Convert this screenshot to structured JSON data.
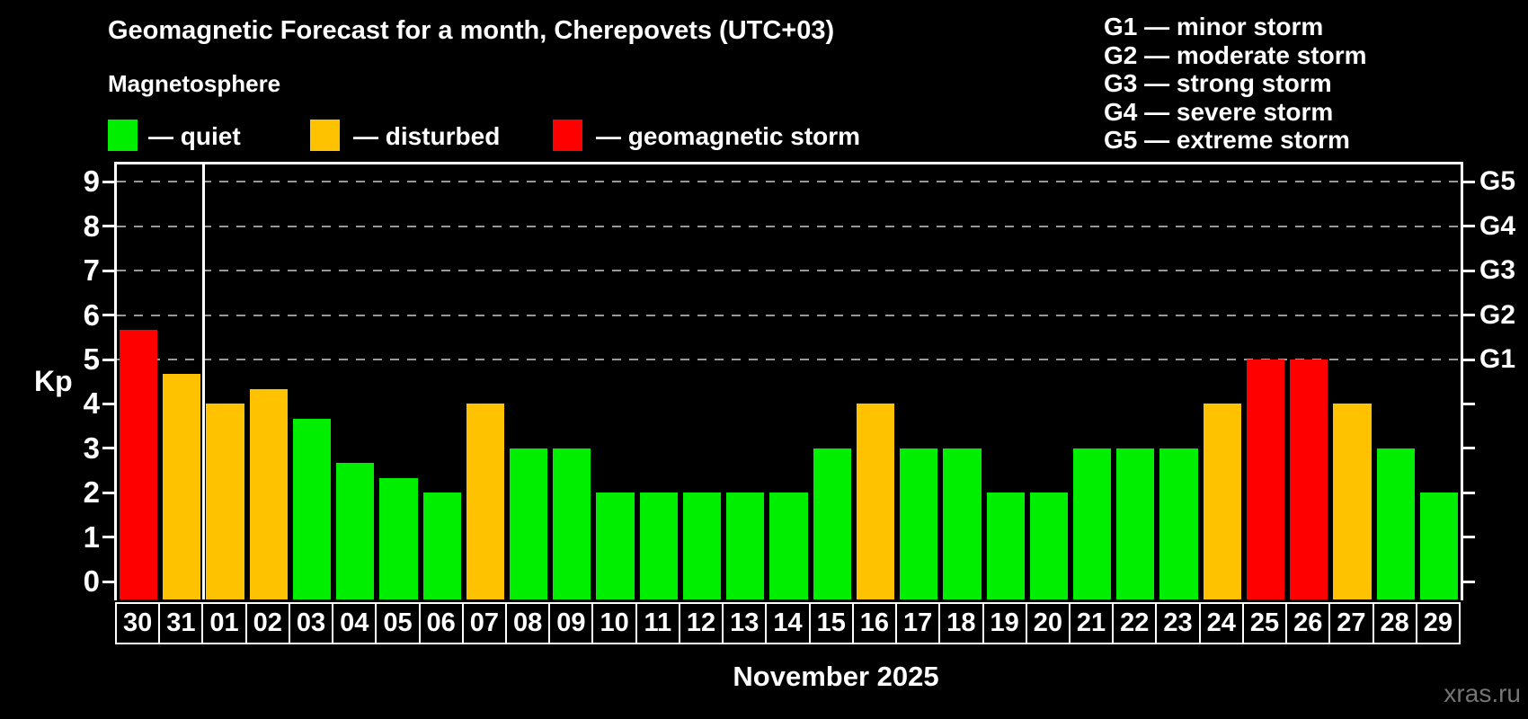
{
  "header": {
    "title": "Geomagnetic Forecast for a month, Cherepovets (UTC+03)",
    "subtitle": "Magnetosphere"
  },
  "legend": {
    "items": [
      {
        "label": "— quiet",
        "level": "quiet"
      },
      {
        "label": "— disturbed",
        "level": "disturbed"
      },
      {
        "label": "— geomagnetic storm",
        "level": "storm"
      }
    ]
  },
  "glegend": {
    "items": [
      "G1 — minor storm",
      "G2 — moderate storm",
      "G3 — strong storm",
      "G4 — severe storm",
      "G5 — extreme storm"
    ]
  },
  "colors": {
    "quiet": "#00ee00",
    "disturbed": "#ffc200",
    "storm": "#ff0000",
    "grid": "#999999",
    "axis": "#ffffff",
    "background": "#000000",
    "watermark": "#757575"
  },
  "chart_data": {
    "type": "bar",
    "title": "Geomagnetic Forecast for a month, Cherepovets (UTC+03)",
    "xlabel": "November 2025",
    "ylabel": "Kp",
    "ylim": [
      0,
      9
    ],
    "y_ticks": [
      0,
      1,
      2,
      3,
      4,
      5,
      6,
      7,
      8,
      9
    ],
    "grid": "dashed horizontal lines at Kp 5 to 9 only",
    "legend_position": "top-left",
    "categories": [
      "30",
      "31",
      "01",
      "02",
      "03",
      "04",
      "05",
      "06",
      "07",
      "08",
      "09",
      "10",
      "11",
      "12",
      "13",
      "14",
      "15",
      "16",
      "17",
      "18",
      "19",
      "20",
      "21",
      "22",
      "23",
      "24",
      "25",
      "26",
      "27",
      "28",
      "29"
    ],
    "values": [
      5.67,
      4.67,
      4,
      4.33,
      3.67,
      2.67,
      2.33,
      2,
      4,
      3,
      3,
      2,
      2,
      2,
      2,
      2,
      3,
      4,
      3,
      3,
      2,
      2,
      3,
      3,
      3,
      4,
      5,
      5,
      4,
      3,
      2
    ],
    "levels": [
      "storm",
      "disturbed",
      "disturbed",
      "disturbed",
      "quiet",
      "quiet",
      "quiet",
      "quiet",
      "disturbed",
      "quiet",
      "quiet",
      "quiet",
      "quiet",
      "quiet",
      "quiet",
      "quiet",
      "quiet",
      "disturbed",
      "quiet",
      "quiet",
      "quiet",
      "quiet",
      "quiet",
      "quiet",
      "quiet",
      "disturbed",
      "storm",
      "storm",
      "disturbed",
      "quiet",
      "quiet"
    ],
    "right_axis": [
      {
        "label": "G1",
        "kp": 5
      },
      {
        "label": "G2",
        "kp": 6
      },
      {
        "label": "G3",
        "kp": 7
      },
      {
        "label": "G4",
        "kp": 8
      },
      {
        "label": "G5",
        "kp": 9
      }
    ],
    "month_separator_after_index": 1
  },
  "footer": {
    "caption": "November 2025",
    "watermark": "xras.ru"
  }
}
